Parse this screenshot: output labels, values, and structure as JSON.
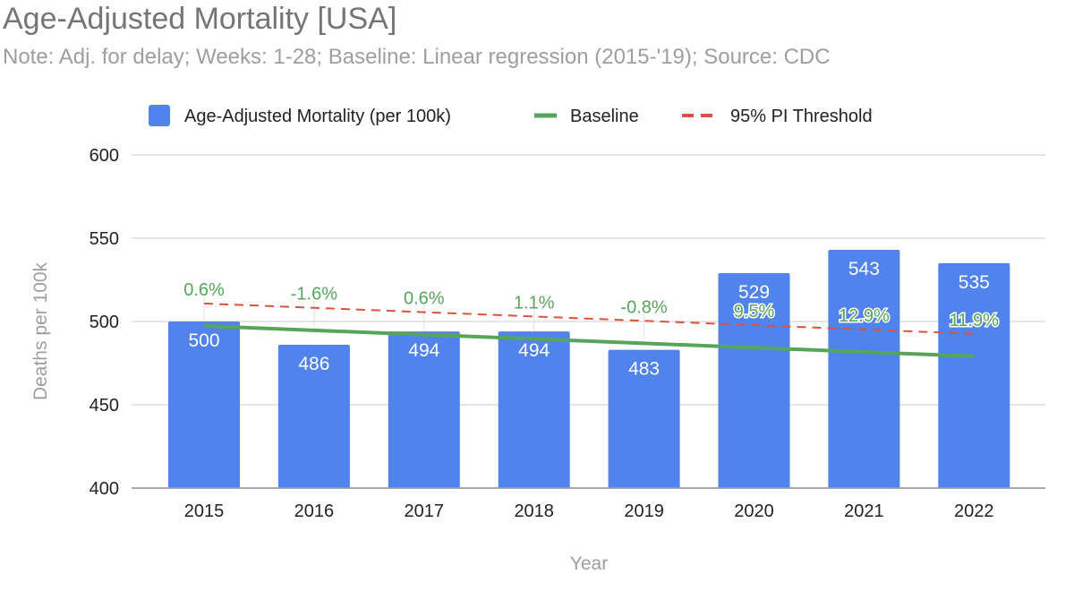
{
  "chart_data": {
    "type": "bar",
    "title": "Age-Adjusted Mortality [USA]",
    "subtitle": "Note: Adj. for delay; Weeks: 1-28; Baseline: Linear regression (2015-'19); Source: CDC",
    "xlabel": "Year",
    "ylabel": "Deaths per 100k",
    "ylim": [
      400,
      600
    ],
    "yticks": [
      400,
      450,
      500,
      550,
      600
    ],
    "grid": true,
    "legend_position": "top",
    "categories": [
      "2015",
      "2016",
      "2017",
      "2018",
      "2019",
      "2020",
      "2021",
      "2022"
    ],
    "series": [
      {
        "name": "Age-Adjusted Mortality (per 100k)",
        "type": "bar",
        "color": "#5083ec",
        "values": [
          500,
          486,
          494,
          494,
          483,
          529,
          543,
          535
        ]
      },
      {
        "name": "Baseline",
        "type": "line",
        "color": "#57a55a",
        "values": [
          497.3,
          494.7,
          492.1,
          489.5,
          486.9,
          484.3,
          481.7,
          479.1
        ]
      },
      {
        "name": "95% PI Threshold",
        "type": "line-dashed",
        "color": "#d9533f",
        "values": [
          510.8,
          508.2,
          505.6,
          503.0,
          500.4,
          497.8,
          495.2,
          492.6
        ]
      }
    ],
    "annotations": [
      "0.6%",
      "-1.6%",
      "0.6%",
      "1.1%",
      "-0.8%",
      "9.5%",
      "12.9%",
      "11.9%"
    ]
  }
}
